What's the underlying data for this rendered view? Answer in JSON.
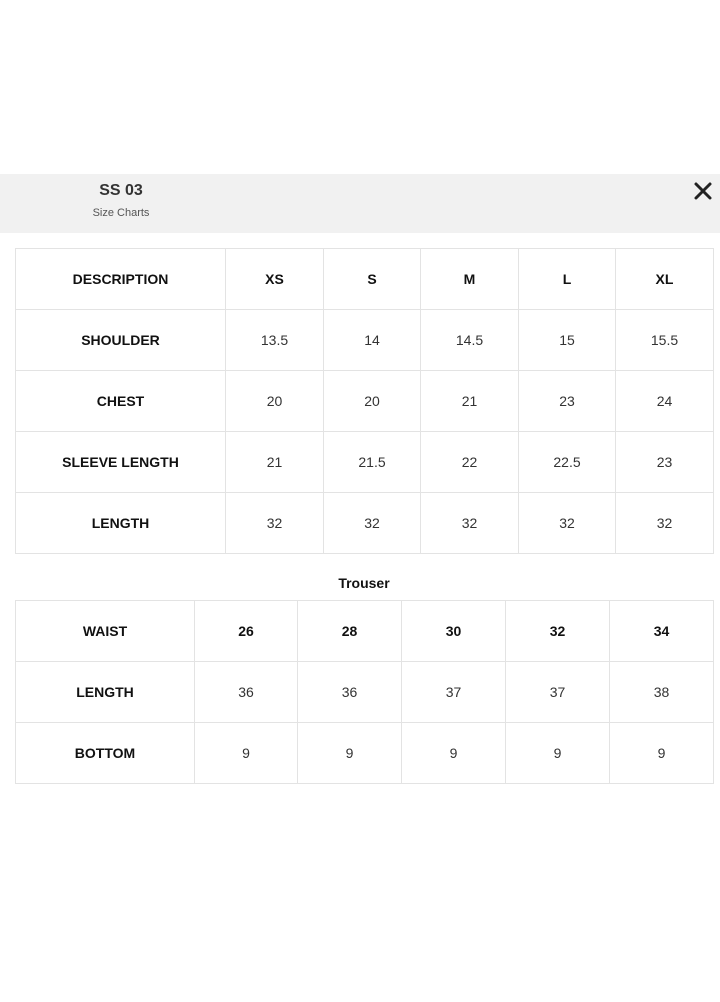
{
  "header": {
    "title": "SS 03",
    "subtitle": "Size Charts",
    "close_icon": "close-icon"
  },
  "shirt_table": {
    "headers": [
      "DESCRIPTION",
      "XS",
      "S",
      "M",
      "L",
      "XL"
    ],
    "rows": [
      [
        "SHOULDER",
        "13.5",
        "14",
        "14.5",
        "15",
        "15.5"
      ],
      [
        "CHEST",
        "20",
        "20",
        "21",
        "23",
        "24"
      ],
      [
        "SLEEVE LENGTH",
        "21",
        "21.5",
        "22",
        "22.5",
        "23"
      ],
      [
        "LENGTH",
        "32",
        "32",
        "32",
        "32",
        "32"
      ]
    ]
  },
  "trouser_label": "Trouser",
  "trouser_table": {
    "headers": [
      "WAIST",
      "26",
      "28",
      "30",
      "32",
      "34"
    ],
    "rows": [
      [
        "LENGTH",
        "36",
        "36",
        "37",
        "37",
        "38"
      ],
      [
        "BOTTOM",
        "9",
        "9",
        "9",
        "9",
        "9"
      ]
    ]
  }
}
